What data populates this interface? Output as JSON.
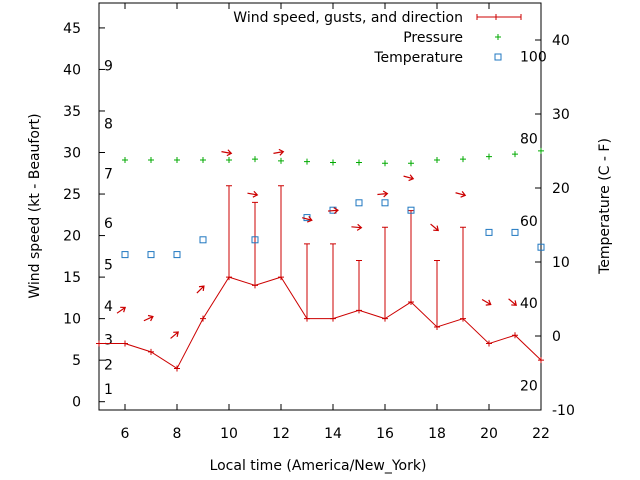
{
  "chart_data": {
    "type": "line",
    "title": "",
    "xlabel": "Local time (America/New_York)",
    "ylabel_left": "Wind speed (kt - Beaufort)",
    "ylabel_right": "Temperature (C - F)",
    "x_ticks": [
      "6",
      "8",
      "10",
      "12",
      "14",
      "16",
      "18",
      "20",
      "22"
    ],
    "y_left_ticks": [
      "0",
      "5",
      "10",
      "15",
      "20",
      "25",
      "30",
      "35",
      "40",
      "45"
    ],
    "y_right_ticks": [
      "-10",
      "0",
      "10",
      "20",
      "30",
      "40"
    ],
    "beaufort_labels": [
      "1",
      "2",
      "3",
      "4",
      "5",
      "6",
      "7",
      "8",
      "9"
    ],
    "fahrenheit_labels": [
      "20",
      "40",
      "60",
      "80",
      "100"
    ],
    "xlim": [
      5,
      22
    ],
    "ylim_left": [
      -1,
      48
    ],
    "ylim_right": [
      -10,
      45
    ],
    "grid": false,
    "legend_position": "top-right",
    "colors": {
      "wind": "#cc0000",
      "pressure": "#00aa00",
      "temperature": "#1f77c0"
    },
    "legend": [
      {
        "label": "Wind speed, gusts, and direction",
        "marker": "errorbar"
      },
      {
        "label": "Pressure",
        "marker": "plus"
      },
      {
        "label": "Temperature",
        "marker": "square"
      }
    ],
    "series": [
      {
        "name": "Wind speed, gusts, and direction",
        "x": [
          5,
          6,
          7,
          8,
          9,
          10,
          11,
          12,
          13,
          14,
          15,
          16,
          17,
          18,
          19,
          20,
          21,
          22
        ],
        "values": [
          7,
          7,
          6,
          4,
          10,
          15,
          14,
          15,
          10,
          10,
          11,
          10,
          12,
          9,
          10,
          7,
          8,
          5
        ],
        "gusts": [
          null,
          null,
          null,
          null,
          null,
          26,
          24,
          26,
          19,
          19,
          17,
          21,
          23,
          17,
          21,
          null,
          null,
          null
        ]
      },
      {
        "name": "Pressure",
        "x": [
          6,
          7,
          8,
          9,
          10,
          11,
          12,
          13,
          14,
          15,
          16,
          17,
          18,
          19,
          20,
          21,
          22
        ],
        "values": [
          29.1,
          29.1,
          29.1,
          29.1,
          29.1,
          29.2,
          29.0,
          28.9,
          28.8,
          28.8,
          28.7,
          28.7,
          29.1,
          29.2,
          29.5,
          29.8,
          30.2
        ]
      },
      {
        "name": "Temperature",
        "x": [
          6,
          7,
          8,
          9,
          11,
          13,
          14,
          15,
          16,
          17,
          20,
          21,
          22
        ],
        "values": [
          11,
          11,
          11,
          13,
          13,
          16,
          17,
          18,
          18,
          17,
          14,
          14,
          12
        ]
      }
    ],
    "wind_direction_arrows": [
      {
        "x": 5.85,
        "y": 11,
        "angle": -35
      },
      {
        "x": 6.9,
        "y": 10,
        "angle": -25
      },
      {
        "x": 7.9,
        "y": 8,
        "angle": -40
      },
      {
        "x": 8.9,
        "y": 13.5,
        "angle": -45
      },
      {
        "x": 9.9,
        "y": 30,
        "angle": 10
      },
      {
        "x": 10.9,
        "y": 25,
        "angle": 10
      },
      {
        "x": 11.9,
        "y": 30,
        "angle": -10
      },
      {
        "x": 13,
        "y": 22,
        "angle": 15
      },
      {
        "x": 14,
        "y": 23,
        "angle": -5
      },
      {
        "x": 14.9,
        "y": 21,
        "angle": 5
      },
      {
        "x": 15.9,
        "y": 25,
        "angle": -5
      },
      {
        "x": 16.9,
        "y": 27,
        "angle": 15
      },
      {
        "x": 17.9,
        "y": 21,
        "angle": 40
      },
      {
        "x": 18.9,
        "y": 25,
        "angle": 15
      },
      {
        "x": 19.9,
        "y": 12,
        "angle": 30
      },
      {
        "x": 20.9,
        "y": 12,
        "angle": 40
      }
    ]
  }
}
